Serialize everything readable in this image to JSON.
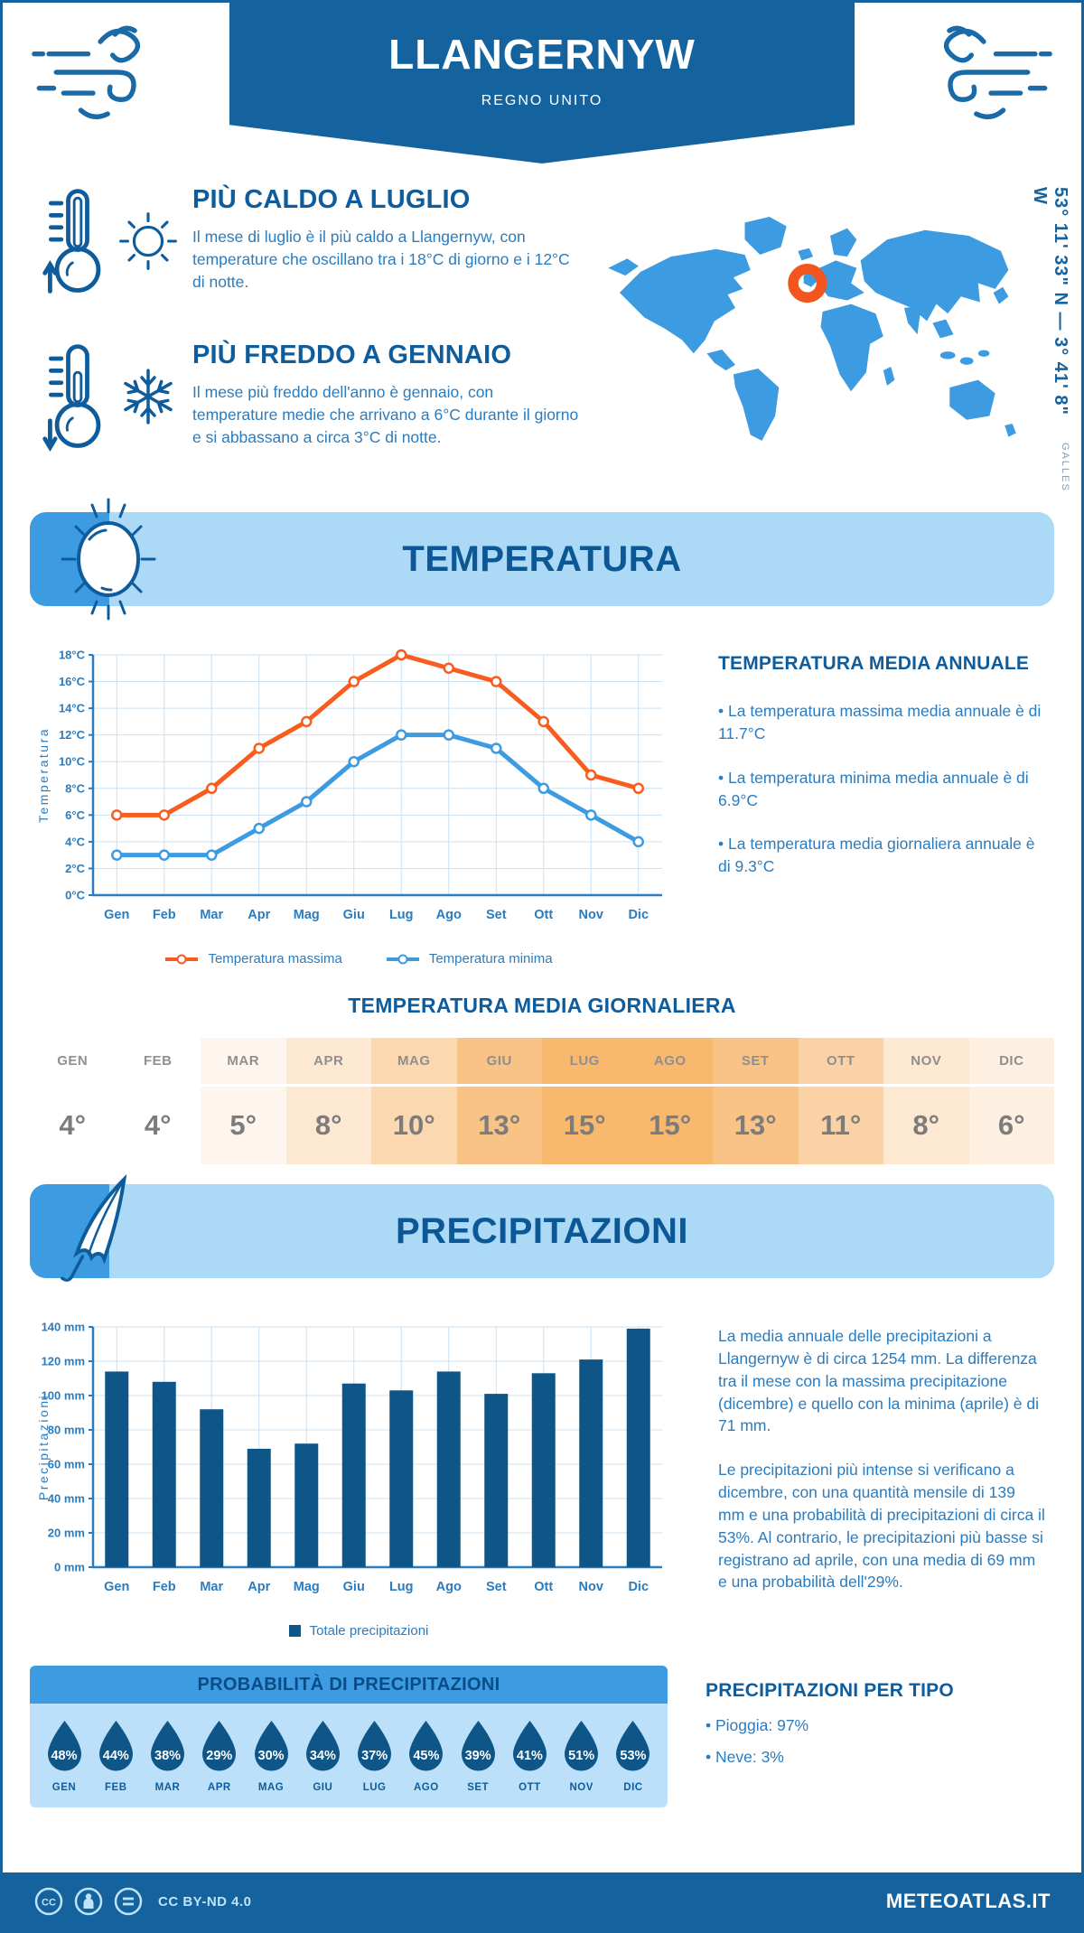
{
  "header": {
    "title": "LLANGERNYW",
    "subtitle": "REGNO UNITO"
  },
  "highlights": [
    {
      "title": "PIÙ CALDO A LUGLIO",
      "text": "Il mese di luglio è il più caldo a Llangernyw, con temperature che oscillano tra i 18°C di giorno e i 12°C di notte."
    },
    {
      "title": "PIÙ FREDDO A GENNAIO",
      "text": "Il mese più freddo dell'anno è gennaio, con temperature medie che arrivano a 6°C durante il giorno e si abbassano a circa 3°C di notte."
    }
  ],
  "map": {
    "coordinates": "53° 11' 33\" N — 3° 41' 8\" W",
    "region": "GALLES",
    "marker_color": "#F4541D"
  },
  "temperature_section": {
    "title": "TEMPERATURA"
  },
  "annual_summary": {
    "title": "TEMPERATURA MEDIA ANNUALE",
    "bullets": [
      "• La temperatura massima media annuale è di 11.7°C",
      "• La temperatura minima media annuale è di 6.9°C",
      "• La temperatura media giornaliera annuale è di 9.3°C"
    ]
  },
  "daily_table": {
    "title": "TEMPERATURA MEDIA GIORNALIERA",
    "months": [
      "GEN",
      "FEB",
      "MAR",
      "APR",
      "MAG",
      "GIU",
      "LUG",
      "AGO",
      "SET",
      "OTT",
      "NOV",
      "DIC"
    ],
    "values": [
      "4°",
      "4°",
      "5°",
      "8°",
      "10°",
      "13°",
      "15°",
      "15°",
      "13°",
      "11°",
      "8°",
      "6°"
    ],
    "cell_colors": [
      "#FFFFFF",
      "#FFFFFF",
      "#FEF6EE",
      "#FDE8D2",
      "#FBD8B0",
      "#F9C386",
      "#F8B96F",
      "#F8B96F",
      "#F9C386",
      "#FAD2A5",
      "#FDE8D2",
      "#FEF0E0"
    ]
  },
  "precipitation_section": {
    "title": "PRECIPITAZIONI"
  },
  "precip_text": {
    "p1": "La media annuale delle precipitazioni a Llangernyw è di circa 1254 mm. La differenza tra il mese con la massima precipitazione (dicembre) e quello con la minima (aprile) è di 71 mm.",
    "p2": "Le precipitazioni più intense si verificano a dicembre, con una quantità mensile di 139 mm e una probabilità di precipitazioni di circa il 53%. Al contrario, le precipitazioni più basse si registrano ad aprile, con una media di 69 mm e una probabilità dell'29%."
  },
  "probability": {
    "title": "PROBABILITÀ DI PRECIPITAZIONI",
    "months": [
      "GEN",
      "FEB",
      "MAR",
      "APR",
      "MAG",
      "GIU",
      "LUG",
      "AGO",
      "SET",
      "OTT",
      "NOV",
      "DIC"
    ],
    "values": [
      "48%",
      "44%",
      "38%",
      "29%",
      "30%",
      "34%",
      "37%",
      "45%",
      "39%",
      "41%",
      "51%",
      "53%"
    ]
  },
  "precip_type": {
    "title": "PRECIPITAZIONI PER TIPO",
    "bullets": [
      "• Pioggia: 97%",
      "• Neve: 3%"
    ]
  },
  "footer": {
    "license": "CC BY-ND 4.0",
    "brand": "METEOATLAS.IT"
  },
  "chart_data": [
    {
      "type": "line",
      "title": "Temperatura massima e minima mensile",
      "x": [
        "Gen",
        "Feb",
        "Mar",
        "Apr",
        "Mag",
        "Giu",
        "Lug",
        "Ago",
        "Set",
        "Ott",
        "Nov",
        "Dic"
      ],
      "series": [
        {
          "name": "Temperatura massima",
          "color": "#F85C1F",
          "values": [
            6,
            6,
            8,
            11,
            13,
            16,
            18,
            17,
            16,
            13,
            9,
            8
          ]
        },
        {
          "name": "Temperatura minima",
          "color": "#3D9BE1",
          "values": [
            3,
            3,
            3,
            5,
            7,
            10,
            12,
            12,
            11,
            8,
            6,
            4
          ]
        }
      ],
      "ylabel": "Temperatura",
      "ylim": [
        0,
        18
      ],
      "ytick_step": 2,
      "ytick_suffix": "°C",
      "grid": true,
      "legend_position": "bottom"
    },
    {
      "type": "bar",
      "title": "Totale precipitazioni mensili",
      "categories": [
        "Gen",
        "Feb",
        "Mar",
        "Apr",
        "Mag",
        "Giu",
        "Lug",
        "Ago",
        "Set",
        "Ott",
        "Nov",
        "Dic"
      ],
      "series": [
        {
          "name": "Totale precipitazioni",
          "color": "#0E5588",
          "values": [
            114,
            108,
            92,
            69,
            72,
            107,
            103,
            114,
            101,
            113,
            121,
            139
          ]
        }
      ],
      "ylabel": "Precipitazioni",
      "ylim": [
        0,
        140
      ],
      "ytick_step": 20,
      "ytick_suffix": " mm",
      "grid": true,
      "legend_position": "bottom"
    }
  ]
}
